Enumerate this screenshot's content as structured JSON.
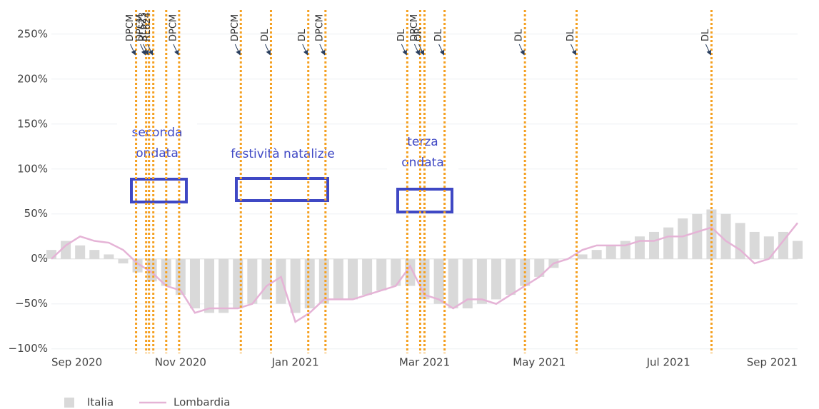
{
  "chart_data": {
    "type": "bar_line",
    "categories": [
      "Sep 2020",
      null,
      null,
      null,
      null,
      null,
      null,
      null,
      null,
      "Nov 2020",
      null,
      null,
      null,
      null,
      null,
      null,
      null,
      "Jan 2021",
      null,
      null,
      null,
      null,
      null,
      null,
      null,
      null,
      "Mar 2021",
      null,
      null,
      null,
      null,
      null,
      null,
      null,
      "May 2021",
      null,
      null,
      null,
      null,
      null,
      null,
      null,
      null,
      "Jul 2021",
      null,
      null,
      null,
      null,
      null,
      null,
      null,
      null,
      "Sep 2021"
    ],
    "series": [
      {
        "name": "Italia",
        "kind": "bar",
        "color": "#d9d9d9",
        "values": [
          10,
          20,
          15,
          10,
          5,
          -5,
          -15,
          -25,
          -30,
          -40,
          -55,
          -60,
          -60,
          -55,
          -50,
          -45,
          -50,
          -60,
          -55,
          -50,
          -45,
          -45,
          -40,
          -35,
          -30,
          -30,
          -45,
          -50,
          -55,
          -55,
          -50,
          -45,
          -40,
          -30,
          -20,
          -10,
          0,
          5,
          10,
          15,
          20,
          25,
          30,
          35,
          45,
          50,
          55,
          50,
          40,
          30,
          25,
          30,
          20
        ]
      },
      {
        "name": "Lombardia",
        "kind": "line",
        "color": "#e5b3d6",
        "values": [
          0,
          15,
          25,
          20,
          18,
          10,
          -5,
          -15,
          -30,
          -35,
          -60,
          -55,
          -55,
          -55,
          -50,
          -30,
          -20,
          -70,
          -60,
          -45,
          -45,
          -45,
          -40,
          -35,
          -30,
          -8,
          -40,
          -45,
          -55,
          -45,
          -45,
          -50,
          -40,
          -30,
          -20,
          -5,
          0,
          10,
          15,
          15,
          15,
          20,
          20,
          25,
          25,
          30,
          35,
          20,
          10,
          -5,
          0,
          20,
          40
        ]
      }
    ],
    "ylim": [
      -105,
      280
    ],
    "yticks": [
      {
        "value": -100,
        "label": "−100%"
      },
      {
        "value": -50,
        "label": "−50%"
      },
      {
        "value": 0,
        "label": "0%"
      },
      {
        "value": 50,
        "label": "50%"
      },
      {
        "value": 100,
        "label": "100%"
      },
      {
        "value": 150,
        "label": "150%"
      },
      {
        "value": 200,
        "label": "200%"
      },
      {
        "value": 250,
        "label": "250%"
      }
    ],
    "grid": true,
    "event_lines": [
      5.9,
      6.6,
      6.8,
      7.1,
      8.0,
      8.9,
      13.2,
      15.3,
      17.9,
      19.1,
      24.8,
      25.7,
      26.0,
      27.4,
      33.0,
      36.6,
      46.0
    ],
    "event_color": "#f5a020",
    "annotations": [
      {
        "text": "DPCM",
        "x": 5.9
      },
      {
        "text": "DPCM",
        "x": 6.6
      },
      {
        "text": "RL623",
        "x": 6.8
      },
      {
        "text": "RL624",
        "x": 7.1
      },
      {
        "text": "DPCM",
        "x": 8.9
      },
      {
        "text": "DPCM",
        "x": 13.2
      },
      {
        "text": "DL",
        "x": 15.3
      },
      {
        "text": "DL",
        "x": 17.9
      },
      {
        "text": "DPCM",
        "x": 19.1
      },
      {
        "text": "DL",
        "x": 24.8
      },
      {
        "text": "DPCM",
        "x": 25.7
      },
      {
        "text": "OR",
        "x": 26.0
      },
      {
        "text": "DL",
        "x": 27.4
      },
      {
        "text": "DL",
        "x": 33.0
      },
      {
        "text": "DL",
        "x": 36.6
      },
      {
        "text": "DL",
        "x": 46.0
      }
    ],
    "box_labels": [
      "seconda",
      "ondata",
      "festività natalizie",
      "terza",
      "ondata"
    ]
  }
}
